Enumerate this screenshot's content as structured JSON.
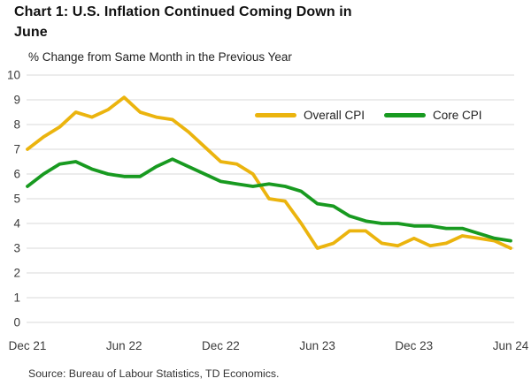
{
  "title": "Chart 1: U.S. Inflation Continued Coming Down in June",
  "subtitle": "% Change from Same Month in the Previous Year",
  "source": "Source: Bureau of Labour Statistics, TD Economics.",
  "legend": {
    "overall_label": "Overall CPI",
    "core_label": "Core CPI"
  },
  "colors": {
    "overall_cpi": "#EBB40E",
    "core_cpi": "#189A20",
    "gridline": "#D9D9D9",
    "axis_text": "#3B3B3B",
    "title_text": "#111111"
  },
  "chart_data": {
    "type": "line",
    "title": "Chart 1: U.S. Inflation Continued Coming Down in June",
    "subtitle": "% Change from Same Month in the Previous Year",
    "x": [
      "Dec 21",
      "Jan 22",
      "Feb 22",
      "Mar 22",
      "Apr 22",
      "May 22",
      "Jun 22",
      "Jul 22",
      "Aug 22",
      "Sep 22",
      "Oct 22",
      "Nov 22",
      "Dec 22",
      "Jan 23",
      "Feb 23",
      "Mar 23",
      "Apr 23",
      "May 23",
      "Jun 23",
      "Jul 23",
      "Aug 23",
      "Sep 23",
      "Oct 23",
      "Nov 23",
      "Dec 23",
      "Jan 24",
      "Feb 24",
      "Mar 24",
      "Apr 24",
      "May 24",
      "Jun 24"
    ],
    "x_tick_labels": [
      "Dec 21",
      "Jun 22",
      "Dec 22",
      "Jun 23",
      "Dec 23",
      "Jun 24"
    ],
    "x_tick_indices": [
      0,
      6,
      12,
      18,
      24,
      30
    ],
    "ylim": [
      0,
      10
    ],
    "y_ticks": [
      0,
      1,
      2,
      3,
      4,
      5,
      6,
      7,
      8,
      9,
      10
    ],
    "grid": "horizontal",
    "legend_position": "top-right-inside",
    "series": [
      {
        "name": "Overall CPI",
        "color": "#EBB40E",
        "values": [
          7.0,
          7.5,
          7.9,
          8.5,
          8.3,
          8.6,
          9.1,
          8.5,
          8.3,
          8.2,
          7.7,
          7.1,
          6.5,
          6.4,
          6.0,
          5.0,
          4.9,
          4.0,
          3.0,
          3.2,
          3.7,
          3.7,
          3.2,
          3.1,
          3.4,
          3.1,
          3.2,
          3.5,
          3.4,
          3.3,
          3.0
        ]
      },
      {
        "name": "Core CPI",
        "color": "#189A20",
        "values": [
          5.5,
          6.0,
          6.4,
          6.5,
          6.2,
          6.0,
          5.9,
          5.9,
          6.3,
          6.6,
          6.3,
          6.0,
          5.7,
          5.6,
          5.5,
          5.6,
          5.5,
          5.3,
          4.8,
          4.7,
          4.3,
          4.1,
          4.0,
          4.0,
          3.9,
          3.9,
          3.8,
          3.8,
          3.6,
          3.4,
          3.3
        ]
      }
    ]
  }
}
